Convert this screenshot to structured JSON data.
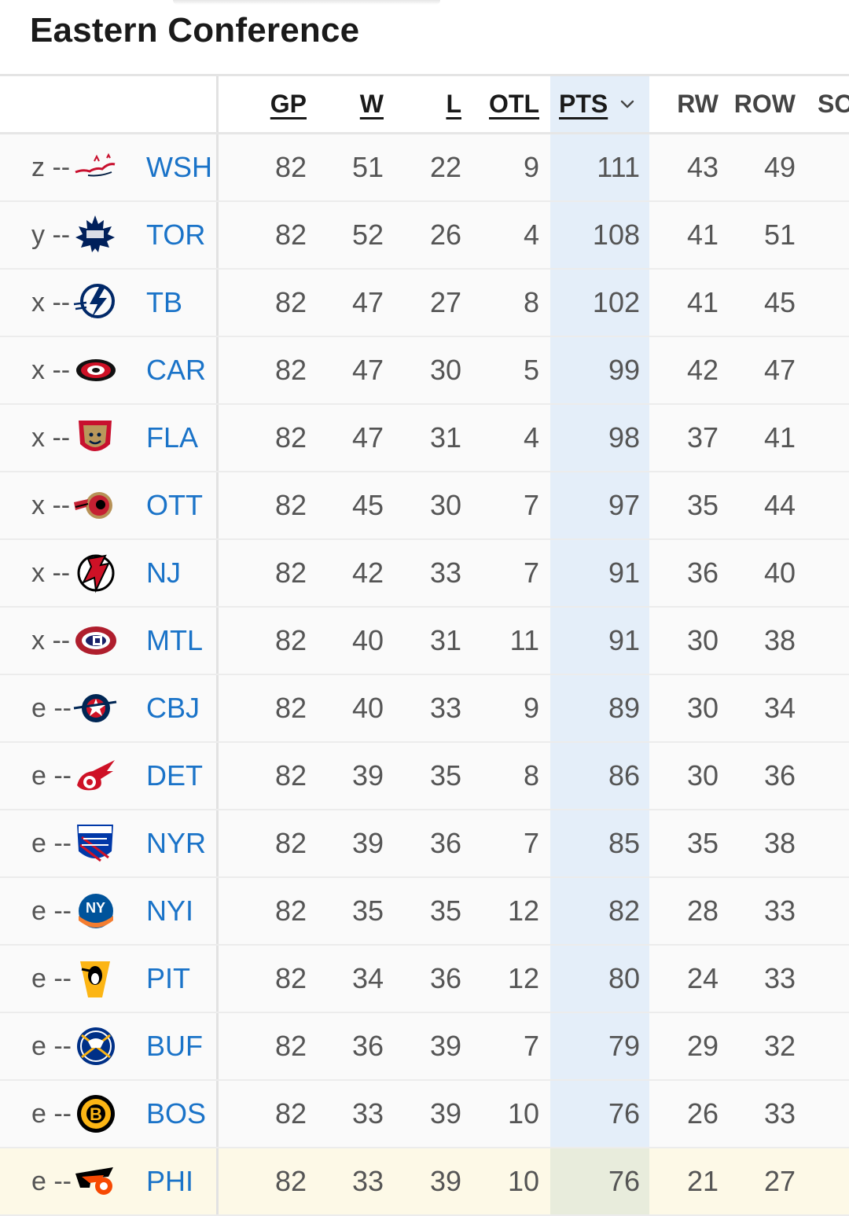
{
  "page": {
    "title": "Eastern Conference"
  },
  "columns": {
    "gp": "GP",
    "w": "W",
    "l": "L",
    "otl": "OTL",
    "pts": "PTS",
    "rw": "RW",
    "row": "ROW",
    "so": "SO"
  },
  "sort": {
    "column": "PTS",
    "direction": "descending",
    "icon": "chevron-down-icon"
  },
  "teams": [
    {
      "clinch": "z --",
      "abbr": "WSH",
      "logo": "capitals-logo",
      "gp": "82",
      "w": "51",
      "l": "22",
      "otl": "9",
      "pts": "111",
      "rw": "43",
      "row": "49"
    },
    {
      "clinch": "y --",
      "abbr": "TOR",
      "logo": "maple-leafs-logo",
      "gp": "82",
      "w": "52",
      "l": "26",
      "otl": "4",
      "pts": "108",
      "rw": "41",
      "row": "51"
    },
    {
      "clinch": "x --",
      "abbr": "TB",
      "logo": "lightning-logo",
      "gp": "82",
      "w": "47",
      "l": "27",
      "otl": "8",
      "pts": "102",
      "rw": "41",
      "row": "45"
    },
    {
      "clinch": "x --",
      "abbr": "CAR",
      "logo": "hurricanes-logo",
      "gp": "82",
      "w": "47",
      "l": "30",
      "otl": "5",
      "pts": "99",
      "rw": "42",
      "row": "47"
    },
    {
      "clinch": "x --",
      "abbr": "FLA",
      "logo": "panthers-logo",
      "gp": "82",
      "w": "47",
      "l": "31",
      "otl": "4",
      "pts": "98",
      "rw": "37",
      "row": "41"
    },
    {
      "clinch": "x --",
      "abbr": "OTT",
      "logo": "senators-logo",
      "gp": "82",
      "w": "45",
      "l": "30",
      "otl": "7",
      "pts": "97",
      "rw": "35",
      "row": "44"
    },
    {
      "clinch": "x --",
      "abbr": "NJ",
      "logo": "devils-logo",
      "gp": "82",
      "w": "42",
      "l": "33",
      "otl": "7",
      "pts": "91",
      "rw": "36",
      "row": "40"
    },
    {
      "clinch": "x --",
      "abbr": "MTL",
      "logo": "canadiens-logo",
      "gp": "82",
      "w": "40",
      "l": "31",
      "otl": "11",
      "pts": "91",
      "rw": "30",
      "row": "38"
    },
    {
      "clinch": "e --",
      "abbr": "CBJ",
      "logo": "blue-jackets-logo",
      "gp": "82",
      "w": "40",
      "l": "33",
      "otl": "9",
      "pts": "89",
      "rw": "30",
      "row": "34"
    },
    {
      "clinch": "e --",
      "abbr": "DET",
      "logo": "red-wings-logo",
      "gp": "82",
      "w": "39",
      "l": "35",
      "otl": "8",
      "pts": "86",
      "rw": "30",
      "row": "36"
    },
    {
      "clinch": "e --",
      "abbr": "NYR",
      "logo": "rangers-logo",
      "gp": "82",
      "w": "39",
      "l": "36",
      "otl": "7",
      "pts": "85",
      "rw": "35",
      "row": "38"
    },
    {
      "clinch": "e --",
      "abbr": "NYI",
      "logo": "islanders-logo",
      "gp": "82",
      "w": "35",
      "l": "35",
      "otl": "12",
      "pts": "82",
      "rw": "28",
      "row": "33"
    },
    {
      "clinch": "e --",
      "abbr": "PIT",
      "logo": "penguins-logo",
      "gp": "82",
      "w": "34",
      "l": "36",
      "otl": "12",
      "pts": "80",
      "rw": "24",
      "row": "33"
    },
    {
      "clinch": "e --",
      "abbr": "BUF",
      "logo": "sabres-logo",
      "gp": "82",
      "w": "36",
      "l": "39",
      "otl": "7",
      "pts": "79",
      "rw": "29",
      "row": "32"
    },
    {
      "clinch": "e --",
      "abbr": "BOS",
      "logo": "bruins-logo",
      "gp": "82",
      "w": "33",
      "l": "39",
      "otl": "10",
      "pts": "76",
      "rw": "26",
      "row": "33"
    },
    {
      "clinch": "e --",
      "abbr": "PHI",
      "logo": "flyers-logo",
      "gp": "82",
      "w": "33",
      "l": "39",
      "otl": "10",
      "pts": "76",
      "rw": "21",
      "row": "27",
      "highlighted": true
    }
  ],
  "colors": {
    "link": "#1a73c8",
    "pts_band": "#e4eef9",
    "highlight_row": "#fdf9e7",
    "row_bg": "#fafafa",
    "divider": "#e2e2e2"
  }
}
